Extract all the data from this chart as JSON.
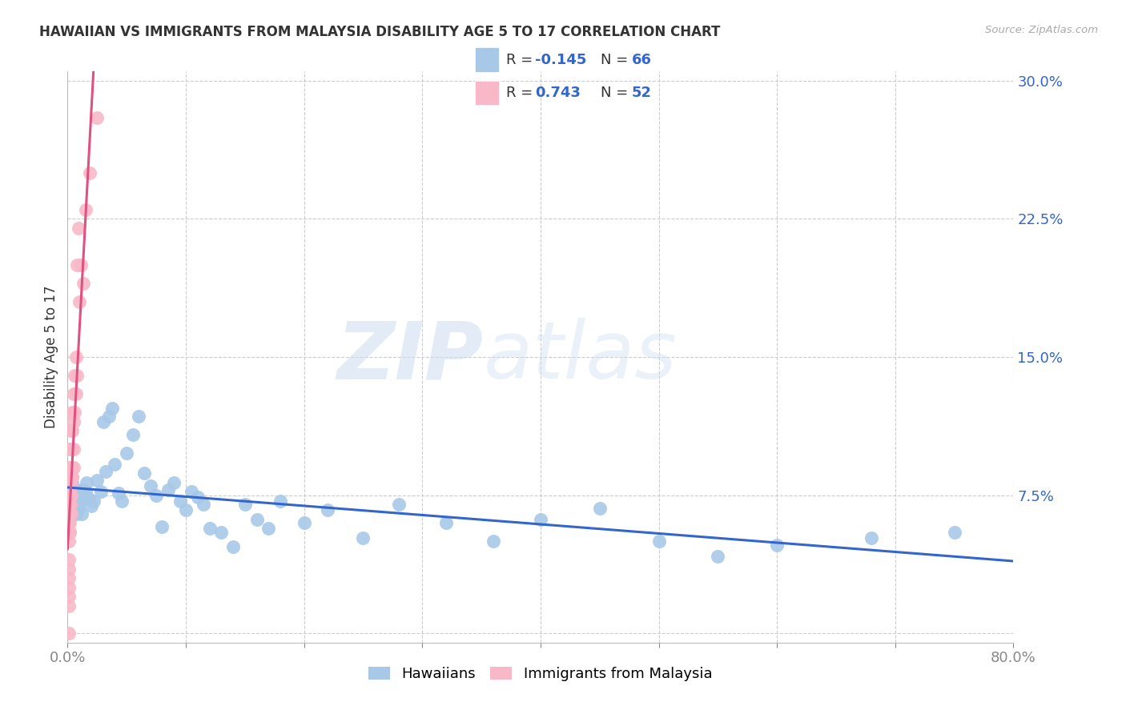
{
  "title": "HAWAIIAN VS IMMIGRANTS FROM MALAYSIA DISABILITY AGE 5 TO 17 CORRELATION CHART",
  "source": "Source: ZipAtlas.com",
  "ylabel": "Disability Age 5 to 17",
  "r1": -0.145,
  "n1": 66,
  "r2": 0.743,
  "n2": 52,
  "color1": "#a8c8e8",
  "color2": "#f8b8c8",
  "line_color1": "#3366cc",
  "line_color2": "#e05080",
  "legend_label1": "Hawaiians",
  "legend_label2": "Immigrants from Malaysia",
  "xlim": [
    0.0,
    0.8
  ],
  "ylim": [
    -0.005,
    0.305
  ],
  "watermark_zip": "ZIP",
  "watermark_atlas": "atlas",
  "hawaiians_x": [
    0.003,
    0.004,
    0.004,
    0.005,
    0.005,
    0.006,
    0.006,
    0.007,
    0.007,
    0.008,
    0.008,
    0.009,
    0.009,
    0.01,
    0.01,
    0.011,
    0.012,
    0.013,
    0.015,
    0.016,
    0.018,
    0.02,
    0.022,
    0.025,
    0.028,
    0.03,
    0.032,
    0.035,
    0.038,
    0.04,
    0.043,
    0.046,
    0.05,
    0.055,
    0.06,
    0.065,
    0.07,
    0.075,
    0.08,
    0.085,
    0.09,
    0.095,
    0.1,
    0.105,
    0.11,
    0.115,
    0.12,
    0.13,
    0.14,
    0.15,
    0.16,
    0.17,
    0.18,
    0.2,
    0.22,
    0.25,
    0.28,
    0.32,
    0.36,
    0.4,
    0.45,
    0.5,
    0.55,
    0.6,
    0.68,
    0.75
  ],
  "hawaiians_y": [
    0.075,
    0.082,
    0.068,
    0.072,
    0.065,
    0.076,
    0.069,
    0.071,
    0.065,
    0.078,
    0.072,
    0.075,
    0.068,
    0.074,
    0.071,
    0.073,
    0.065,
    0.078,
    0.077,
    0.082,
    0.073,
    0.069,
    0.072,
    0.083,
    0.077,
    0.115,
    0.088,
    0.118,
    0.122,
    0.092,
    0.076,
    0.072,
    0.098,
    0.108,
    0.118,
    0.087,
    0.08,
    0.075,
    0.058,
    0.078,
    0.082,
    0.072,
    0.067,
    0.077,
    0.074,
    0.07,
    0.057,
    0.055,
    0.047,
    0.07,
    0.062,
    0.057,
    0.072,
    0.06,
    0.067,
    0.052,
    0.07,
    0.06,
    0.05,
    0.062,
    0.068,
    0.05,
    0.042,
    0.048,
    0.052,
    0.055
  ],
  "malaysia_x": [
    0.001,
    0.001,
    0.001,
    0.001,
    0.001,
    0.001,
    0.001,
    0.001,
    0.001,
    0.001,
    0.0015,
    0.0015,
    0.0015,
    0.002,
    0.002,
    0.002,
    0.002,
    0.002,
    0.002,
    0.002,
    0.0025,
    0.0025,
    0.003,
    0.003,
    0.003,
    0.003,
    0.003,
    0.003,
    0.003,
    0.0035,
    0.004,
    0.004,
    0.004,
    0.004,
    0.004,
    0.005,
    0.005,
    0.005,
    0.005,
    0.006,
    0.006,
    0.007,
    0.007,
    0.008,
    0.008,
    0.009,
    0.01,
    0.011,
    0.013,
    0.015,
    0.019,
    0.025
  ],
  "malaysia_y": [
    0.0,
    0.015,
    0.02,
    0.025,
    0.03,
    0.035,
    0.04,
    0.05,
    0.055,
    0.06,
    0.055,
    0.065,
    0.06,
    0.065,
    0.07,
    0.075,
    0.08,
    0.09,
    0.1,
    0.055,
    0.07,
    0.075,
    0.065,
    0.075,
    0.08,
    0.085,
    0.09,
    0.1,
    0.11,
    0.085,
    0.085,
    0.09,
    0.1,
    0.11,
    0.12,
    0.09,
    0.1,
    0.115,
    0.13,
    0.12,
    0.14,
    0.13,
    0.15,
    0.14,
    0.2,
    0.22,
    0.18,
    0.2,
    0.19,
    0.23,
    0.25,
    0.28
  ]
}
